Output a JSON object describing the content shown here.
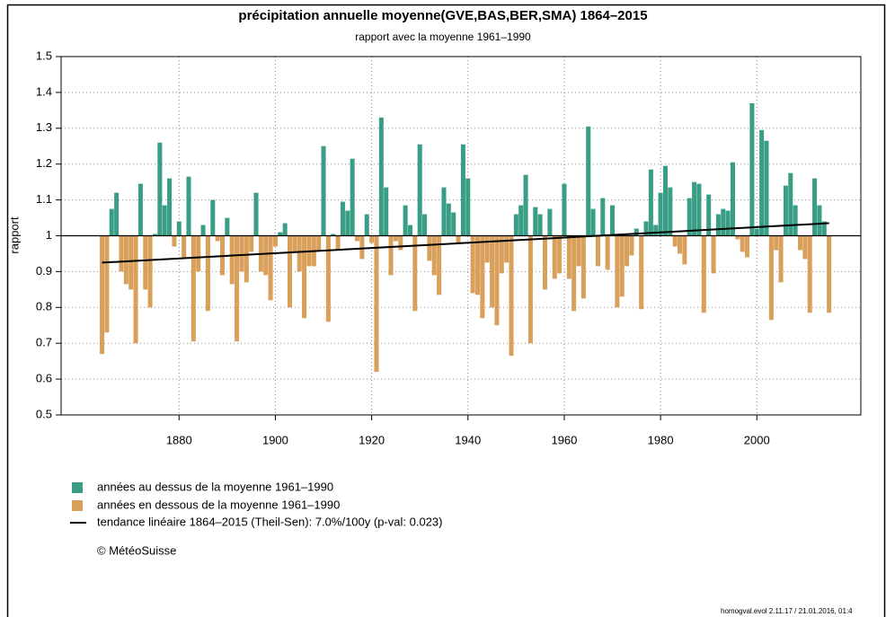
{
  "chart_data": {
    "type": "bar",
    "title": "précipitation annuelle moyenne(GVE,BAS,BER,SMA) 1864–2015",
    "subtitle": "rapport avec la moyenne 1961–1990",
    "y_label": "rapport",
    "baseline": 1,
    "x": [
      1864,
      1865,
      1866,
      1867,
      1868,
      1869,
      1870,
      1871,
      1872,
      1873,
      1874,
      1875,
      1876,
      1877,
      1878,
      1879,
      1880,
      1881,
      1882,
      1883,
      1884,
      1885,
      1886,
      1887,
      1888,
      1889,
      1890,
      1891,
      1892,
      1893,
      1894,
      1895,
      1896,
      1897,
      1898,
      1899,
      1900,
      1901,
      1902,
      1903,
      1904,
      1905,
      1906,
      1907,
      1908,
      1909,
      1910,
      1911,
      1912,
      1913,
      1914,
      1915,
      1916,
      1917,
      1918,
      1919,
      1920,
      1921,
      1922,
      1923,
      1924,
      1925,
      1926,
      1927,
      1928,
      1929,
      1930,
      1931,
      1932,
      1933,
      1934,
      1935,
      1936,
      1937,
      1938,
      1939,
      1940,
      1941,
      1942,
      1943,
      1944,
      1945,
      1946,
      1947,
      1948,
      1949,
      1950,
      1951,
      1952,
      1953,
      1954,
      1955,
      1956,
      1957,
      1958,
      1959,
      1960,
      1961,
      1962,
      1963,
      1964,
      1965,
      1966,
      1967,
      1968,
      1969,
      1970,
      1971,
      1972,
      1973,
      1974,
      1975,
      1976,
      1977,
      1978,
      1979,
      1980,
      1981,
      1982,
      1983,
      1984,
      1985,
      1986,
      1987,
      1988,
      1989,
      1990,
      1991,
      1992,
      1993,
      1994,
      1995,
      1996,
      1997,
      1998,
      1999,
      2000,
      2001,
      2002,
      2003,
      2004,
      2005,
      2006,
      2007,
      2008,
      2009,
      2010,
      2011,
      2012,
      2013,
      2014,
      2015
    ],
    "values": [
      0.67,
      0.73,
      1.075,
      1.12,
      0.9,
      0.865,
      0.85,
      0.7,
      1.145,
      0.85,
      0.8,
      1.005,
      1.26,
      1.085,
      1.16,
      0.97,
      1.04,
      0.94,
      1.165,
      0.705,
      0.9,
      1.03,
      0.79,
      1.1,
      0.985,
      0.89,
      1.05,
      0.865,
      0.705,
      0.9,
      0.87,
      0.955,
      1.12,
      0.9,
      0.89,
      0.82,
      0.97,
      1.01,
      1.035,
      0.8,
      0.955,
      0.9,
      0.77,
      0.915,
      0.915,
      0.96,
      1.25,
      0.76,
      1.005,
      0.96,
      1.095,
      1.07,
      1.215,
      0.985,
      0.935,
      1.06,
      0.98,
      0.62,
      1.33,
      1.135,
      0.89,
      0.985,
      0.96,
      1.085,
      1.03,
      0.79,
      1.255,
      1.06,
      0.93,
      0.89,
      0.835,
      1.135,
      1.09,
      1.065,
      0.98,
      1.255,
      1.16,
      0.84,
      0.835,
      0.77,
      0.925,
      0.8,
      0.75,
      0.895,
      0.925,
      0.665,
      1.06,
      1.085,
      1.17,
      0.7,
      1.08,
      1.06,
      0.85,
      1.075,
      0.88,
      0.895,
      1.145,
      0.88,
      0.79,
      0.915,
      0.825,
      1.305,
      1.075,
      0.915,
      1.105,
      0.905,
      1.085,
      0.8,
      0.83,
      0.915,
      0.945,
      1.02,
      0.795,
      1.04,
      1.185,
      1.03,
      1.12,
      1.195,
      1.135,
      0.97,
      0.95,
      0.92,
      1.105,
      1.15,
      1.145,
      0.785,
      1.115,
      0.895,
      1.06,
      1.075,
      1.07,
      1.205,
      0.99,
      0.955,
      0.94,
      1.37,
      1.02,
      1.295,
      1.265,
      0.765,
      0.96,
      0.87,
      1.14,
      1.175,
      1.085,
      0.96,
      0.935,
      0.785,
      1.16,
      1.085,
      1.04,
      0.785
    ],
    "legend": [
      {
        "label": "années au dessus de la moyenne 1961–1990",
        "color": "#3a9e86"
      },
      {
        "label": "années en dessous de la moyenne 1961–1990",
        "color": "#d9a05b"
      }
    ],
    "trend": {
      "name": "tendance linéaire 1864–2015 (Theil-Sen): 7.0%/100y (p-val: 0.023)",
      "x": [
        1864,
        2015
      ],
      "values": [
        0.925,
        1.035
      ],
      "color": "#000000"
    },
    "credit": "© MétéoSuisse",
    "footer": "homogval.evol 2.11.17 / 21.01.2016, 01:4",
    "xlim": [
      1855.5,
      2021.6
    ],
    "ylim": [
      0.5,
      1.5
    ],
    "xticks": [
      1880,
      1900,
      1920,
      1940,
      1960,
      1980,
      2000
    ],
    "yticks": [
      0.5,
      0.6,
      0.7,
      0.8,
      0.9,
      1,
      1.1,
      1.2,
      1.3,
      1.4,
      1.5
    ],
    "grid": true
  }
}
